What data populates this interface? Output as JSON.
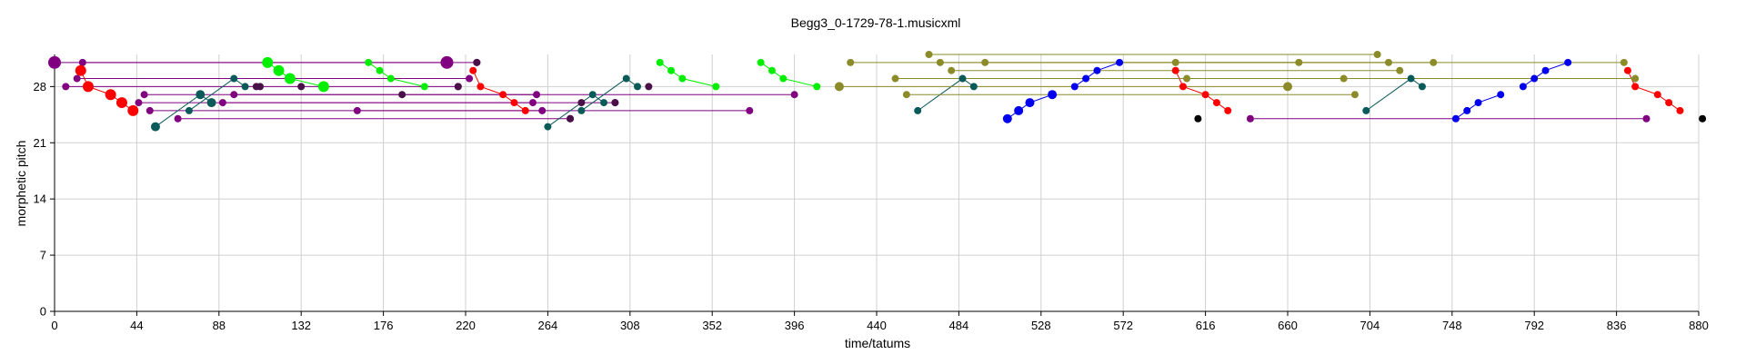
{
  "chart_data": {
    "type": "scatter",
    "title": "Begg3_0-1729-78-1.musicxml",
    "xlabel": "time/tatums",
    "ylabel": "morphetic pitch",
    "xlim": [
      0,
      880
    ],
    "ylim": [
      0,
      32
    ],
    "xticks": [
      0,
      44,
      88,
      132,
      176,
      220,
      264,
      308,
      352,
      396,
      440,
      484,
      528,
      572,
      616,
      660,
      704,
      748,
      792,
      836,
      880
    ],
    "yticks": [
      0,
      7,
      14,
      21,
      28
    ],
    "grid": true,
    "colors": {
      "purple": "#800080",
      "darkpurple": "#4a1048",
      "red": "#ff0000",
      "green": "#00ee00",
      "teal": "#0b5a5a",
      "olive": "#8b8b2a",
      "olive_dot": "#4a4510",
      "blue": "#0000ee",
      "black": "#000000"
    },
    "series": [
      {
        "color": "purple",
        "line": true,
        "points": [
          [
            0,
            31,
            7
          ],
          [
            210,
            31,
            7
          ]
        ]
      },
      {
        "color": "purple",
        "line": true,
        "points": [
          [
            15,
            31,
            4
          ],
          [
            226,
            31,
            4
          ]
        ]
      },
      {
        "color": "purple",
        "line": true,
        "points": [
          [
            12,
            29,
            4
          ],
          [
            222,
            29,
            4
          ]
        ]
      },
      {
        "color": "purple",
        "line": true,
        "points": [
          [
            6,
            28,
            4
          ],
          [
            216,
            28,
            4
          ]
        ]
      },
      {
        "color": "purple",
        "line": true,
        "points": [
          [
            48,
            27,
            4
          ],
          [
            258,
            27,
            4
          ]
        ]
      },
      {
        "color": "purple",
        "line": true,
        "points": [
          [
            90,
            26,
            4
          ],
          [
            300,
            26,
            4
          ]
        ]
      },
      {
        "color": "purple",
        "line": true,
        "points": [
          [
            96,
            27,
            4
          ],
          [
            396,
            27,
            4
          ]
        ]
      },
      {
        "color": "purple",
        "line": true,
        "points": [
          [
            45,
            26,
            4
          ],
          [
            256,
            26,
            4
          ]
        ]
      },
      {
        "color": "purple",
        "line": true,
        "points": [
          [
            51,
            25,
            4
          ],
          [
            261,
            25,
            4
          ]
        ]
      },
      {
        "color": "purple",
        "line": true,
        "points": [
          [
            66,
            24,
            4
          ],
          [
            276,
            24,
            4
          ]
        ]
      },
      {
        "color": "purple",
        "line": true,
        "points": [
          [
            162,
            25,
            4
          ],
          [
            372,
            25,
            4
          ]
        ]
      },
      {
        "color": "purple",
        "line": true,
        "points": [
          [
            640,
            24,
            4
          ],
          [
            852,
            24,
            4
          ]
        ]
      },
      {
        "color": "darkpurple",
        "line": false,
        "points": [
          [
            110,
            28,
            4
          ],
          [
            108,
            28,
            4
          ],
          [
            132,
            28,
            4
          ],
          [
            186,
            27,
            4
          ],
          [
            216,
            28,
            4
          ],
          [
            226,
            31,
            4
          ],
          [
            276,
            24,
            4
          ],
          [
            282,
            26,
            4
          ],
          [
            300,
            26,
            4
          ],
          [
            318,
            28,
            4
          ]
        ]
      },
      {
        "color": "red",
        "line": true,
        "points": [
          [
            14,
            30,
            6
          ],
          [
            18,
            28,
            6
          ],
          [
            30,
            27,
            6
          ],
          [
            36,
            26,
            6
          ],
          [
            42,
            25,
            6
          ]
        ]
      },
      {
        "color": "red",
        "line": true,
        "points": [
          [
            224,
            30,
            4
          ],
          [
            228,
            28,
            4
          ],
          [
            240,
            27,
            4
          ],
          [
            246,
            26,
            4
          ],
          [
            252,
            25,
            4
          ]
        ]
      },
      {
        "color": "red",
        "line": true,
        "points": [
          [
            600,
            30,
            4
          ],
          [
            604,
            28,
            4
          ],
          [
            616,
            27,
            4
          ],
          [
            622,
            26,
            4
          ],
          [
            628,
            25,
            4
          ]
        ]
      },
      {
        "color": "red",
        "line": true,
        "points": [
          [
            842,
            30,
            4
          ],
          [
            846,
            28,
            4
          ],
          [
            858,
            27,
            4
          ],
          [
            864,
            26,
            4
          ],
          [
            870,
            25,
            4
          ]
        ]
      },
      {
        "color": "green",
        "line": true,
        "points": [
          [
            114,
            31,
            6
          ],
          [
            120,
            30,
            6
          ],
          [
            126,
            29,
            6
          ],
          [
            144,
            28,
            6
          ]
        ]
      },
      {
        "color": "green",
        "line": true,
        "points": [
          [
            168,
            31,
            4
          ],
          [
            174,
            30,
            4
          ],
          [
            180,
            29,
            4
          ],
          [
            198,
            28,
            4
          ]
        ]
      },
      {
        "color": "green",
        "line": true,
        "points": [
          [
            324,
            31,
            4
          ],
          [
            330,
            30,
            4
          ],
          [
            336,
            29,
            4
          ],
          [
            354,
            28,
            4
          ]
        ]
      },
      {
        "color": "green",
        "line": true,
        "points": [
          [
            378,
            31,
            4
          ],
          [
            384,
            30,
            4
          ],
          [
            390,
            29,
            4
          ],
          [
            408,
            28,
            4
          ]
        ]
      },
      {
        "color": "teal",
        "line": true,
        "points": [
          [
            54,
            23,
            5
          ],
          [
            78,
            27,
            5
          ],
          [
            84,
            26,
            5
          ]
        ]
      },
      {
        "color": "teal",
        "line": true,
        "points": [
          [
            72,
            25,
            4
          ],
          [
            96,
            29,
            4
          ],
          [
            102,
            28,
            4
          ]
        ]
      },
      {
        "color": "teal",
        "line": true,
        "points": [
          [
            264,
            23,
            4
          ],
          [
            288,
            27,
            4
          ],
          [
            294,
            26,
            4
          ]
        ]
      },
      {
        "color": "teal",
        "line": true,
        "points": [
          [
            282,
            25,
            4
          ],
          [
            306,
            29,
            4
          ],
          [
            312,
            28,
            4
          ]
        ]
      },
      {
        "color": "teal",
        "line": true,
        "points": [
          [
            462,
            25,
            4
          ],
          [
            486,
            29,
            4
          ],
          [
            492,
            28,
            4
          ]
        ]
      },
      {
        "color": "teal",
        "line": true,
        "points": [
          [
            702,
            25,
            4
          ],
          [
            726,
            29,
            4
          ],
          [
            732,
            28,
            4
          ]
        ]
      },
      {
        "color": "olive",
        "line": true,
        "points": [
          [
            420,
            28,
            5
          ],
          [
            660,
            28,
            5
          ]
        ]
      },
      {
        "color": "olive",
        "line": true,
        "points": [
          [
            426,
            31,
            4
          ],
          [
            666,
            31,
            4
          ]
        ]
      },
      {
        "color": "olive",
        "line": true,
        "points": [
          [
            468,
            32,
            4
          ],
          [
            708,
            32,
            4
          ]
        ]
      },
      {
        "color": "olive",
        "line": true,
        "points": [
          [
            474,
            31,
            4
          ],
          [
            714,
            31,
            4
          ]
        ]
      },
      {
        "color": "olive",
        "line": true,
        "points": [
          [
            480,
            30,
            4
          ],
          [
            720,
            30,
            4
          ]
        ]
      },
      {
        "color": "olive",
        "line": true,
        "points": [
          [
            450,
            29,
            4
          ],
          [
            690,
            29,
            4
          ]
        ]
      },
      {
        "color": "olive",
        "line": true,
        "points": [
          [
            456,
            27,
            4
          ],
          [
            696,
            27,
            4
          ]
        ]
      },
      {
        "color": "olive",
        "line": true,
        "points": [
          [
            498,
            31,
            4
          ],
          [
            738,
            31,
            4
          ]
        ]
      },
      {
        "color": "olive",
        "line": true,
        "points": [
          [
            600,
            31,
            4
          ],
          [
            840,
            31,
            4
          ]
        ]
      },
      {
        "color": "olive",
        "line": true,
        "points": [
          [
            606,
            29,
            4
          ],
          [
            846,
            29,
            4
          ]
        ]
      },
      {
        "color": "blue",
        "line": true,
        "points": [
          [
            510,
            24,
            5
          ],
          [
            516,
            25,
            5
          ],
          [
            522,
            26,
            5
          ],
          [
            534,
            27,
            5
          ]
        ]
      },
      {
        "color": "blue",
        "line": true,
        "points": [
          [
            546,
            28,
            4
          ],
          [
            552,
            29,
            4
          ],
          [
            558,
            30,
            4
          ],
          [
            570,
            31,
            4
          ]
        ]
      },
      {
        "color": "blue",
        "line": true,
        "points": [
          [
            750,
            24,
            4
          ],
          [
            756,
            25,
            4
          ],
          [
            762,
            26,
            4
          ],
          [
            774,
            27,
            4
          ]
        ]
      },
      {
        "color": "blue",
        "line": true,
        "points": [
          [
            786,
            28,
            4
          ],
          [
            792,
            29,
            4
          ],
          [
            798,
            30,
            4
          ],
          [
            810,
            31,
            4
          ]
        ]
      },
      {
        "color": "black",
        "line": false,
        "points": [
          [
            612,
            24,
            4
          ],
          [
            882,
            24,
            4
          ]
        ]
      }
    ]
  }
}
